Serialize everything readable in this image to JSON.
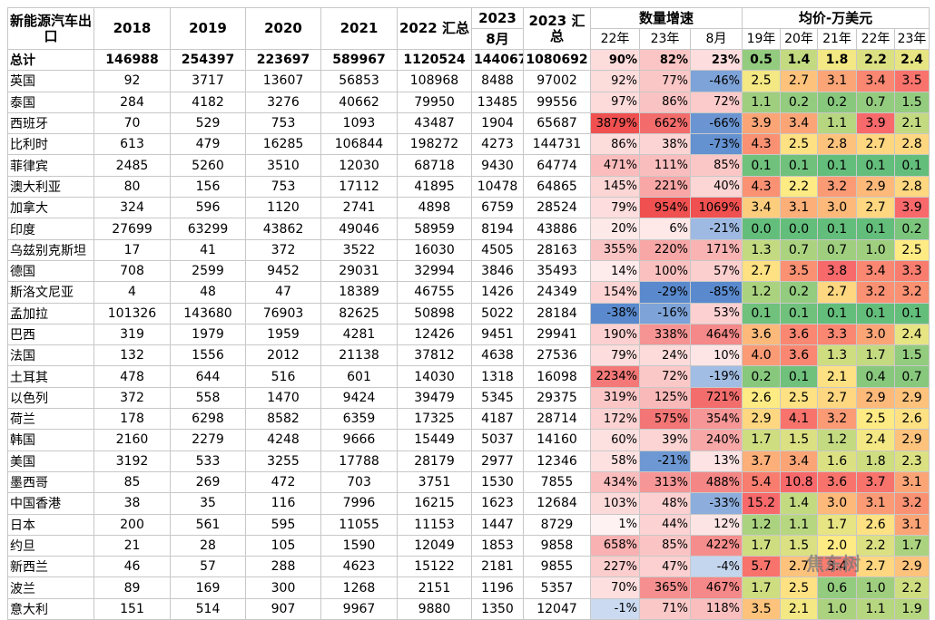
{
  "header": {
    "region": "新能源汽车出口",
    "years": [
      "2018",
      "2019",
      "2020",
      "2021"
    ],
    "total_2022": "2022 汇总",
    "y2023": "2023",
    "aug": "8月",
    "total_2023": "2023 汇总",
    "growth": "数量增速",
    "growth_cols": [
      "22年",
      "23年",
      "8月"
    ],
    "price": "均价-万美元",
    "price_cols": [
      "19年",
      "20年",
      "21年",
      "22年",
      "23年"
    ]
  },
  "rows": [
    [
      "总计",
      "146988",
      "254397",
      "223697",
      "589967",
      "1120524",
      "144067",
      "1080692",
      "90%",
      "82%",
      "23%",
      "0.5",
      "1.4",
      "1.8",
      "2.2",
      "2.4"
    ],
    [
      "英国",
      "92",
      "3717",
      "13607",
      "56853",
      "108968",
      "8488",
      "97002",
      "92%",
      "77%",
      "-46%",
      "2.5",
      "2.7",
      "3.1",
      "3.4",
      "3.5"
    ],
    [
      "泰国",
      "284",
      "4182",
      "3276",
      "40662",
      "79950",
      "13485",
      "99556",
      "97%",
      "86%",
      "72%",
      "1.1",
      "0.2",
      "0.2",
      "0.7",
      "1.5"
    ],
    [
      "西班牙",
      "70",
      "529",
      "753",
      "1093",
      "43487",
      "1904",
      "65687",
      "3879%",
      "662%",
      "-66%",
      "3.9",
      "3.4",
      "1.1",
      "3.9",
      "2.1"
    ],
    [
      "比利时",
      "613",
      "479",
      "16285",
      "106844",
      "198272",
      "4273",
      "144731",
      "86%",
      "38%",
      "-73%",
      "4.3",
      "2.5",
      "2.8",
      "2.7",
      "2.8"
    ],
    [
      "菲律宾",
      "2485",
      "5260",
      "3510",
      "12030",
      "68718",
      "9430",
      "64774",
      "471%",
      "111%",
      "85%",
      "0.1",
      "0.1",
      "0.1",
      "0.1",
      "0.1"
    ],
    [
      "澳大利亚",
      "80",
      "156",
      "753",
      "17112",
      "41895",
      "10478",
      "64865",
      "145%",
      "221%",
      "40%",
      "4.3",
      "2.2",
      "3.2",
      "2.9",
      "2.8"
    ],
    [
      "加拿大",
      "324",
      "596",
      "1120",
      "2741",
      "4898",
      "6759",
      "28524",
      "79%",
      "954%",
      "1069%",
      "3.4",
      "3.1",
      "3.0",
      "2.7",
      "3.9"
    ],
    [
      "印度",
      "27699",
      "63299",
      "43862",
      "49046",
      "58959",
      "8194",
      "43886",
      "20%",
      "6%",
      "-21%",
      "0.0",
      "0.0",
      "0.1",
      "0.1",
      "0.2"
    ],
    [
      "乌兹别克斯坦",
      "17",
      "41",
      "372",
      "3522",
      "16030",
      "4505",
      "28163",
      "355%",
      "220%",
      "171%",
      "1.3",
      "0.7",
      "0.7",
      "1.0",
      "2.5"
    ],
    [
      "德国",
      "708",
      "2599",
      "9452",
      "29031",
      "32994",
      "3846",
      "35493",
      "14%",
      "100%",
      "57%",
      "2.7",
      "3.5",
      "3.8",
      "3.4",
      "3.3"
    ],
    [
      "斯洛文尼亚",
      "4",
      "48",
      "47",
      "18389",
      "46755",
      "1426",
      "24349",
      "154%",
      "-29%",
      "-85%",
      "1.2",
      "0.2",
      "2.7",
      "3.2",
      "3.2"
    ],
    [
      "孟加拉",
      "101326",
      "143680",
      "76903",
      "82625",
      "50898",
      "5022",
      "28184",
      "-38%",
      "-16%",
      "53%",
      "0.1",
      "0.1",
      "0.1",
      "0.1",
      "0.1"
    ],
    [
      "巴西",
      "319",
      "1979",
      "1959",
      "4281",
      "12426",
      "9451",
      "29941",
      "190%",
      "338%",
      "464%",
      "3.6",
      "3.6",
      "3.3",
      "3.0",
      "2.4"
    ],
    [
      "法国",
      "132",
      "1556",
      "2012",
      "21138",
      "37812",
      "4638",
      "27536",
      "79%",
      "24%",
      "10%",
      "4.0",
      "3.6",
      "1.3",
      "1.7",
      "1.5"
    ],
    [
      "土耳其",
      "478",
      "644",
      "516",
      "601",
      "14030",
      "1318",
      "16098",
      "2234%",
      "72%",
      "-19%",
      "0.2",
      "0.1",
      "2.1",
      "0.4",
      "0.7"
    ],
    [
      "以色列",
      "372",
      "558",
      "1470",
      "9424",
      "39479",
      "5345",
      "29375",
      "319%",
      "125%",
      "721%",
      "2.6",
      "2.5",
      "2.7",
      "2.9",
      "2.9"
    ],
    [
      "荷兰",
      "178",
      "6298",
      "8582",
      "6359",
      "17325",
      "4187",
      "28714",
      "172%",
      "575%",
      "354%",
      "2.9",
      "4.1",
      "3.2",
      "2.5",
      "2.6"
    ],
    [
      "韩国",
      "2160",
      "2279",
      "4248",
      "9666",
      "15449",
      "5037",
      "14160",
      "60%",
      "39%",
      "240%",
      "1.7",
      "1.5",
      "1.2",
      "2.4",
      "2.9"
    ],
    [
      "美国",
      "3192",
      "533",
      "3255",
      "17788",
      "28179",
      "2977",
      "12346",
      "58%",
      "-21%",
      "13%",
      "3.7",
      "3.4",
      "1.6",
      "1.8",
      "2.3"
    ],
    [
      "墨西哥",
      "85",
      "269",
      "472",
      "703",
      "3751",
      "1530",
      "7855",
      "434%",
      "313%",
      "488%",
      "5.4",
      "10.8",
      "3.6",
      "3.7",
      "3.1"
    ],
    [
      "中国香港",
      "38",
      "35",
      "116",
      "7996",
      "16215",
      "1623",
      "12684",
      "103%",
      "48%",
      "-33%",
      "15.2",
      "1.4",
      "3.0",
      "3.1",
      "3.2"
    ],
    [
      "日本",
      "200",
      "561",
      "595",
      "11055",
      "11153",
      "1447",
      "8729",
      "1%",
      "44%",
      "12%",
      "1.2",
      "1.1",
      "1.7",
      "2.6",
      "3.1"
    ],
    [
      "约旦",
      "21",
      "28",
      "105",
      "1590",
      "12049",
      "1853",
      "9858",
      "658%",
      "85%",
      "422%",
      "1.7",
      "1.5",
      "2.0",
      "2.2",
      "1.7"
    ],
    [
      "新西兰",
      "46",
      "57",
      "288",
      "4623",
      "15122",
      "2181",
      "9855",
      "227%",
      "47%",
      "-4%",
      "5.7",
      "2.7",
      "3.4",
      "2.7",
      "2.9"
    ],
    [
      "波兰",
      "89",
      "169",
      "300",
      "1268",
      "2151",
      "1196",
      "5357",
      "70%",
      "365%",
      "467%",
      "1.7",
      "2.5",
      "0.6",
      "1.0",
      "2.2"
    ],
    [
      "意大利",
      "151",
      "514",
      "907",
      "9967",
      "9880",
      "1350",
      "12047",
      "-1%",
      "71%",
      "118%",
      "3.5",
      "2.1",
      "1.0",
      "1.1",
      "1.9"
    ]
  ],
  "watermark": "焦东树"
}
